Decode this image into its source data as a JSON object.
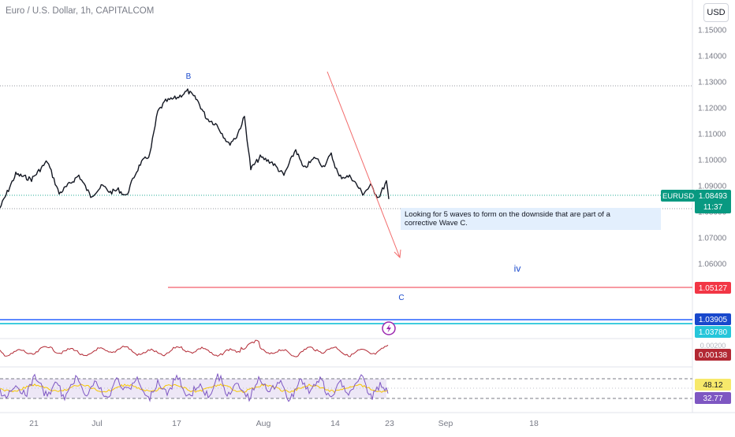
{
  "header": {
    "symbol_title": "Euro / U.S. Dollar, 1h, CAPITALCOM",
    "currency_button": "USD"
  },
  "annotations": {
    "note": "Looking for 5 waves to form on the downside that are part of a corrective Wave C.",
    "wave_b": "B",
    "wave_c": "C",
    "wave_iv": "iv"
  },
  "price_badges": {
    "symbol": "EURUSD",
    "last_price": "1.08493",
    "countdown": "11:37",
    "red_level": "1.05127",
    "blue_level": "1.03905",
    "teal_level": "1.03780",
    "macd_value": "0.00138",
    "macd_axis_partial": "0.00200",
    "rsi_upper": "48.12",
    "rsi_lower": "32.77"
  },
  "colors": {
    "price_line": "#131722",
    "red": "#f23645",
    "macd": "#b22833",
    "blue": "#2962ff",
    "navy": "#1848cc",
    "teal": "#22ab94",
    "rsi": "#7e57c2",
    "rsi_band": "#ede7f6",
    "note_bg": "#e3effd",
    "arrow": "#f26b6b",
    "badge_green": "#089981"
  },
  "chart_data": {
    "type": "line",
    "title": "Euro / U.S. Dollar, 1h, CAPITALCOM",
    "y_axis_ticks": [
      "1.15000",
      "1.14000",
      "1.13000",
      "1.12000",
      "1.11000",
      "1.10000",
      "1.09000",
      "1.08000",
      "1.07000",
      "1.06000"
    ],
    "x_axis_ticks": [
      "21",
      "Jul",
      "17",
      "Aug",
      "14",
      "23",
      "Sep",
      "18"
    ],
    "ylim": [
      1.052,
      1.155
    ],
    "series": [
      {
        "x": [
          0,
          20,
          40,
          60,
          75,
          100,
          115,
          130,
          140,
          150,
          160,
          170,
          178,
          190,
          200,
          210,
          225,
          238,
          250,
          262,
          275,
          290,
          300,
          310,
          318,
          330,
          345,
          360,
          375,
          385,
          400,
          410,
          420,
          430,
          445,
          460,
          470,
          480,
          490,
          493
        ],
        "values": [
          1.0815,
          1.0945,
          1.0925,
          1.0995,
          1.087,
          1.094,
          1.086,
          1.09,
          1.0875,
          1.0885,
          1.086,
          1.0935,
          1.0985,
          1.102,
          1.1185,
          1.1225,
          1.124,
          1.1265,
          1.123,
          1.116,
          1.1135,
          1.106,
          1.109,
          1.1165,
          1.0965,
          1.101,
          1.099,
          1.094,
          1.104,
          1.0965,
          1.101,
          1.0975,
          1.102,
          1.0935,
          1.0935,
          1.087,
          1.09,
          1.0855,
          1.0915,
          1.0849
        ]
      }
    ],
    "levels": [
      1.05127,
      1.03905,
      1.0378
    ],
    "rsi_levels": [
      48.12,
      32.77
    ],
    "macd_value": 0.00138,
    "grid": false,
    "legend": "none"
  }
}
